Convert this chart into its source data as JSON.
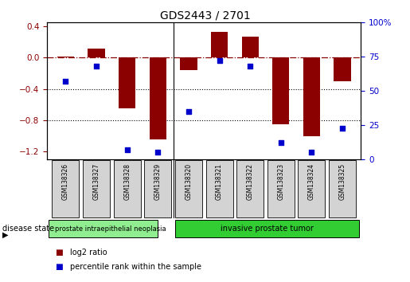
{
  "title": "GDS2443 / 2701",
  "samples": [
    "GSM138326",
    "GSM138327",
    "GSM138328",
    "GSM138329",
    "GSM138320",
    "GSM138321",
    "GSM138322",
    "GSM138323",
    "GSM138324",
    "GSM138325"
  ],
  "log2_ratio": [
    0.02,
    0.12,
    -0.65,
    -1.05,
    -0.16,
    0.33,
    0.27,
    -0.85,
    -1.0,
    -0.3
  ],
  "percentile_rank": [
    57,
    68,
    7,
    5,
    35,
    72,
    68,
    12,
    5,
    23
  ],
  "group1_samples": 4,
  "group1_label": "prostate intraepithelial neoplasia",
  "group2_label": "invasive prostate tumor",
  "group1_color": "#90ee90",
  "group2_color": "#32cd32",
  "bar_color": "#8b0000",
  "dot_color": "#0000cd",
  "ylim_left": [
    -1.3,
    0.45
  ],
  "ylim_right": [
    0,
    100
  ],
  "yticks_left": [
    -1.2,
    -0.8,
    -0.4,
    0.0,
    0.4
  ],
  "yticks_right": [
    0,
    25,
    50,
    75,
    100
  ],
  "hline_y": 0.0,
  "dotted_lines": [
    -0.4,
    -0.8
  ],
  "bar_width": 0.55,
  "disease_state_label": "disease state"
}
